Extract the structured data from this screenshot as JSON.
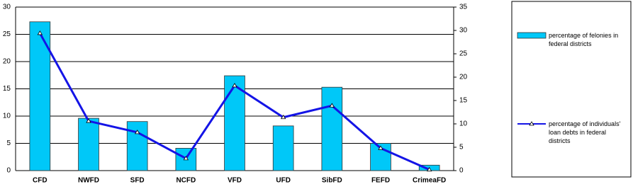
{
  "chart_data": {
    "type": "bar-line",
    "categories": [
      "CFD",
      "NWFD",
      "SFD",
      "NCFD",
      "VFD",
      "UFD",
      "SibFD",
      "FEFD",
      "CrimeaFD"
    ],
    "series": [
      {
        "name": "percentage of felonies in federal districts",
        "color": "#00c8f8",
        "type": "bar",
        "values": [
          27.3,
          9.6,
          9.0,
          4.1,
          17.4,
          8.2,
          15.3,
          5.0,
          1.0
        ]
      },
      {
        "name": "percentage of individuals' loan debts in federal districts",
        "color": "#1414e6",
        "type": "line",
        "axis": "y2",
        "values": [
          29.4,
          10.6,
          8.2,
          2.6,
          18.2,
          11.4,
          13.9,
          4.8,
          0.2
        ]
      }
    ],
    "ylim": [
      0,
      30
    ],
    "yticks": [
      0,
      5,
      10,
      15,
      20,
      25,
      30
    ],
    "y2lim": [
      0,
      35
    ],
    "y2ticks": [
      0,
      5,
      10,
      15,
      20,
      25,
      30,
      35
    ],
    "grid": true
  }
}
